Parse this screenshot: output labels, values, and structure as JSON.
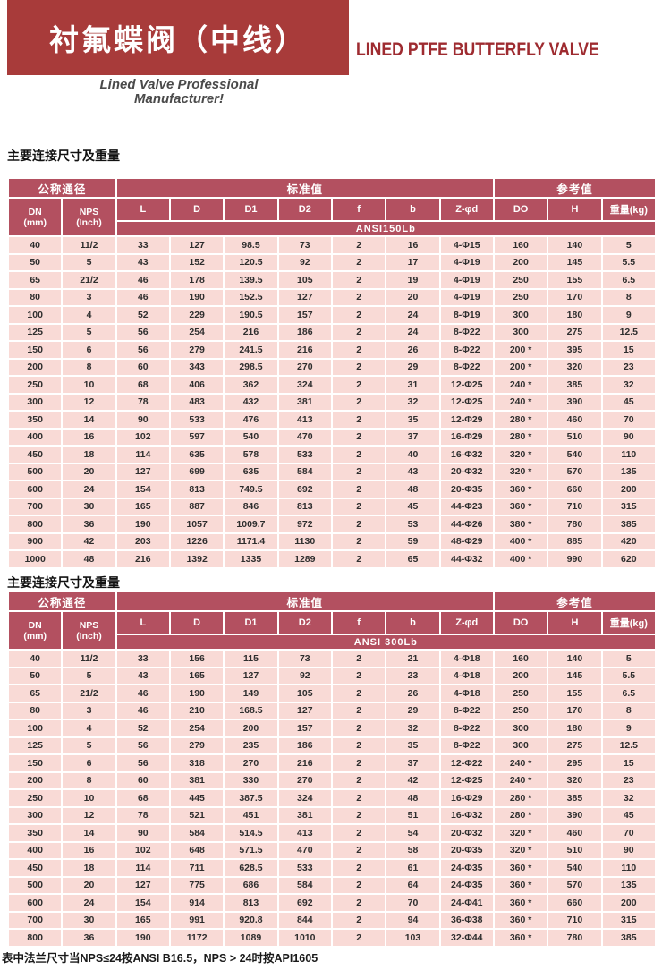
{
  "header": {
    "banner_title": "衬氟蝶阀（中线）",
    "subtitle_en": "LINED PTFE BUTTERFLY VALVE",
    "tagline_line1": "Lined Valve Professional",
    "tagline_line2": "Manufacturer!"
  },
  "colors": {
    "banner_red": "#a83b3a",
    "title_red": "#9e2b30",
    "table_header_rose": "#b35060",
    "row_pink": "#f9dad6"
  },
  "sections": [
    {
      "title": "主要连接尺寸及重量"
    },
    {
      "title": "主要连接尺寸及重量"
    }
  ],
  "footnote": "表中法兰尺寸当NPS≤24按ANSI B16.5，NPS > 24时按API1605",
  "tables": [
    {
      "group_headers": [
        {
          "label": "公称通径",
          "span": 2
        },
        {
          "label": "标准值",
          "span": 7
        },
        {
          "label": "参考值",
          "span": 3
        }
      ],
      "columns": [
        [
          "DN",
          "(mm)"
        ],
        [
          "NPS",
          "(Inch)"
        ],
        "L",
        "D",
        "D1",
        "D2",
        "f",
        "b",
        "Z-φd",
        "DO",
        "H",
        "重量(kg)"
      ],
      "standard_label": "ANSI150Lb",
      "rows": [
        [
          "40",
          "11/2",
          "33",
          "127",
          "98.5",
          "73",
          "2",
          "16",
          "4-Φ15",
          "160",
          "140",
          "5"
        ],
        [
          "50",
          "5",
          "43",
          "152",
          "120.5",
          "92",
          "2",
          "17",
          "4-Φ19",
          "200",
          "145",
          "5.5"
        ],
        [
          "65",
          "21/2",
          "46",
          "178",
          "139.5",
          "105",
          "2",
          "19",
          "4-Φ19",
          "250",
          "155",
          "6.5"
        ],
        [
          "80",
          "3",
          "46",
          "190",
          "152.5",
          "127",
          "2",
          "20",
          "4-Φ19",
          "250",
          "170",
          "8"
        ],
        [
          "100",
          "4",
          "52",
          "229",
          "190.5",
          "157",
          "2",
          "24",
          "8-Φ19",
          "300",
          "180",
          "9"
        ],
        [
          "125",
          "5",
          "56",
          "254",
          "216",
          "186",
          "2",
          "24",
          "8-Φ22",
          "300",
          "275",
          "12.5"
        ],
        [
          "150",
          "6",
          "56",
          "279",
          "241.5",
          "216",
          "2",
          "26",
          "8-Φ22",
          "200 *",
          "395",
          "15"
        ],
        [
          "200",
          "8",
          "60",
          "343",
          "298.5",
          "270",
          "2",
          "29",
          "8-Φ22",
          "200 *",
          "320",
          "23"
        ],
        [
          "250",
          "10",
          "68",
          "406",
          "362",
          "324",
          "2",
          "31",
          "12-Φ25",
          "240 *",
          "385",
          "32"
        ],
        [
          "300",
          "12",
          "78",
          "483",
          "432",
          "381",
          "2",
          "32",
          "12-Φ25",
          "240 *",
          "390",
          "45"
        ],
        [
          "350",
          "14",
          "90",
          "533",
          "476",
          "413",
          "2",
          "35",
          "12-Φ29",
          "280 *",
          "460",
          "70"
        ],
        [
          "400",
          "16",
          "102",
          "597",
          "540",
          "470",
          "2",
          "37",
          "16-Φ29",
          "280 *",
          "510",
          "90"
        ],
        [
          "450",
          "18",
          "114",
          "635",
          "578",
          "533",
          "2",
          "40",
          "16-Φ32",
          "320 *",
          "540",
          "110"
        ],
        [
          "500",
          "20",
          "127",
          "699",
          "635",
          "584",
          "2",
          "43",
          "20-Φ32",
          "320 *",
          "570",
          "135"
        ],
        [
          "600",
          "24",
          "154",
          "813",
          "749.5",
          "692",
          "2",
          "48",
          "20-Φ35",
          "360 *",
          "660",
          "200"
        ],
        [
          "700",
          "30",
          "165",
          "887",
          "846",
          "813",
          "2",
          "45",
          "44-Φ23",
          "360 *",
          "710",
          "315"
        ],
        [
          "800",
          "36",
          "190",
          "1057",
          "1009.7",
          "972",
          "2",
          "53",
          "44-Φ26",
          "380 *",
          "780",
          "385"
        ],
        [
          "900",
          "42",
          "203",
          "1226",
          "1171.4",
          "1130",
          "2",
          "59",
          "48-Φ29",
          "400 *",
          "885",
          "420"
        ],
        [
          "1000",
          "48",
          "216",
          "1392",
          "1335",
          "1289",
          "2",
          "65",
          "44-Φ32",
          "400 *",
          "990",
          "620"
        ]
      ]
    },
    {
      "group_headers": [
        {
          "label": "公称通径",
          "span": 2
        },
        {
          "label": "标准值",
          "span": 7
        },
        {
          "label": "参考值",
          "span": 3
        }
      ],
      "columns": [
        [
          "DN",
          "(mm)"
        ],
        [
          "NPS",
          "(Inch)"
        ],
        "L",
        "D",
        "D1",
        "D2",
        "f",
        "b",
        "Z-φd",
        "DO",
        "H",
        "重量(kg)"
      ],
      "standard_label": "ANSI 300Lb",
      "rows": [
        [
          "40",
          "11/2",
          "33",
          "156",
          "115",
          "73",
          "2",
          "21",
          "4-Φ18",
          "160",
          "140",
          "5"
        ],
        [
          "50",
          "5",
          "43",
          "165",
          "127",
          "92",
          "2",
          "23",
          "4-Φ18",
          "200",
          "145",
          "5.5"
        ],
        [
          "65",
          "21/2",
          "46",
          "190",
          "149",
          "105",
          "2",
          "26",
          "4-Φ18",
          "250",
          "155",
          "6.5"
        ],
        [
          "80",
          "3",
          "46",
          "210",
          "168.5",
          "127",
          "2",
          "29",
          "8-Φ22",
          "250",
          "170",
          "8"
        ],
        [
          "100",
          "4",
          "52",
          "254",
          "200",
          "157",
          "2",
          "32",
          "8-Φ22",
          "300",
          "180",
          "9"
        ],
        [
          "125",
          "5",
          "56",
          "279",
          "235",
          "186",
          "2",
          "35",
          "8-Φ22",
          "300",
          "275",
          "12.5"
        ],
        [
          "150",
          "6",
          "56",
          "318",
          "270",
          "216",
          "2",
          "37",
          "12-Φ22",
          "240 *",
          "295",
          "15"
        ],
        [
          "200",
          "8",
          "60",
          "381",
          "330",
          "270",
          "2",
          "42",
          "12-Φ25",
          "240 *",
          "320",
          "23"
        ],
        [
          "250",
          "10",
          "68",
          "445",
          "387.5",
          "324",
          "2",
          "48",
          "16-Φ29",
          "280 *",
          "385",
          "32"
        ],
        [
          "300",
          "12",
          "78",
          "521",
          "451",
          "381",
          "2",
          "51",
          "16-Φ32",
          "280 *",
          "390",
          "45"
        ],
        [
          "350",
          "14",
          "90",
          "584",
          "514.5",
          "413",
          "2",
          "54",
          "20-Φ32",
          "320 *",
          "460",
          "70"
        ],
        [
          "400",
          "16",
          "102",
          "648",
          "571.5",
          "470",
          "2",
          "58",
          "20-Φ35",
          "320 *",
          "510",
          "90"
        ],
        [
          "450",
          "18",
          "114",
          "711",
          "628.5",
          "533",
          "2",
          "61",
          "24-Φ35",
          "360 *",
          "540",
          "110"
        ],
        [
          "500",
          "20",
          "127",
          "775",
          "686",
          "584",
          "2",
          "64",
          "24-Φ35",
          "360 *",
          "570",
          "135"
        ],
        [
          "600",
          "24",
          "154",
          "914",
          "813",
          "692",
          "2",
          "70",
          "24-Φ41",
          "360 *",
          "660",
          "200"
        ],
        [
          "700",
          "30",
          "165",
          "991",
          "920.8",
          "844",
          "2",
          "94",
          "36-Φ38",
          "360 *",
          "710",
          "315"
        ],
        [
          "800",
          "36",
          "190",
          "1172",
          "1089",
          "1010",
          "2",
          "103",
          "32-Φ44",
          "360 *",
          "780",
          "385"
        ]
      ]
    }
  ]
}
